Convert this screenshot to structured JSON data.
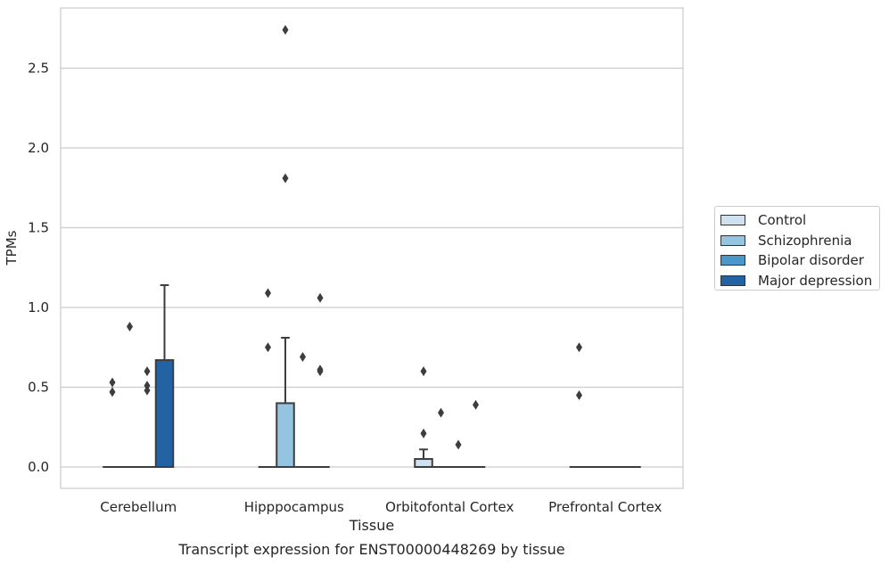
{
  "chart_data": {
    "type": "box",
    "title": "Transcript expression for ENST00000448269 by tissue",
    "xlabel": "Tissue",
    "ylabel": "TPMs",
    "ylim": [
      -0.13,
      2.88
    ],
    "yticks": [
      "0.0",
      "0.5",
      "1.0",
      "1.5",
      "2.0",
      "2.5"
    ],
    "ytick_values": [
      0.0,
      0.5,
      1.0,
      1.5,
      2.0,
      2.5
    ],
    "grid": "horizontal",
    "legend_position": "right",
    "categories": [
      "Cerebellum",
      "Hipppocampus",
      "Orbitofontal Cortex",
      "Prefrontal Cortex"
    ],
    "series": [
      {
        "name": "Control",
        "color": "#d0e1f2",
        "boxes": [
          {
            "q1": 0,
            "median": 0,
            "q3": 0,
            "whisker_low": 0,
            "whisker_high": 0,
            "outliers": [
              0.53,
              0.47
            ]
          },
          {
            "q1": 0,
            "median": 0,
            "q3": 0,
            "whisker_low": 0,
            "whisker_high": 0,
            "outliers": [
              1.09,
              0.75
            ]
          },
          {
            "q1": 0,
            "median": 0,
            "q3": 0.05,
            "whisker_low": 0,
            "whisker_high": 0.11,
            "outliers": [
              0.6,
              0.21
            ]
          },
          {
            "q1": 0,
            "median": 0,
            "q3": 0,
            "whisker_low": 0,
            "whisker_high": 0,
            "outliers": [
              0.75,
              0.45
            ]
          }
        ]
      },
      {
        "name": "Schizophrenia",
        "color": "#94c4df",
        "boxes": [
          {
            "q1": 0,
            "median": 0,
            "q3": 0,
            "whisker_low": 0,
            "whisker_high": 0,
            "outliers": [
              0.88
            ]
          },
          {
            "q1": 0,
            "median": 0,
            "q3": 0.4,
            "whisker_low": 0,
            "whisker_high": 0.81,
            "outliers": [
              2.74,
              1.81
            ]
          },
          {
            "q1": 0,
            "median": 0,
            "q3": 0,
            "whisker_low": 0,
            "whisker_high": 0,
            "outliers": [
              0.34
            ]
          },
          {
            "q1": 0,
            "median": 0,
            "q3": 0,
            "whisker_low": 0,
            "whisker_high": 0,
            "outliers": []
          }
        ]
      },
      {
        "name": "Bipolar disorder",
        "color": "#4a98c9",
        "boxes": [
          {
            "q1": 0,
            "median": 0,
            "q3": 0,
            "whisker_low": 0,
            "whisker_high": 0,
            "outliers": [
              0.6,
              0.51,
              0.48
            ]
          },
          {
            "q1": 0,
            "median": 0,
            "q3": 0,
            "whisker_low": 0,
            "whisker_high": 0,
            "outliers": [
              0.69
            ]
          },
          {
            "q1": 0,
            "median": 0,
            "q3": 0,
            "whisker_low": 0,
            "whisker_high": 0,
            "outliers": [
              0.14
            ]
          },
          {
            "q1": 0,
            "median": 0,
            "q3": 0,
            "whisker_low": 0,
            "whisker_high": 0,
            "outliers": []
          }
        ]
      },
      {
        "name": "Major depression",
        "color": "#2363a3",
        "boxes": [
          {
            "q1": 0,
            "median": 0,
            "q3": 0.67,
            "whisker_low": 0,
            "whisker_high": 1.14,
            "outliers": []
          },
          {
            "q1": 0,
            "median": 0,
            "q3": 0,
            "whisker_low": 0,
            "whisker_high": 0,
            "outliers": [
              1.06,
              0.61,
              0.6
            ]
          },
          {
            "q1": 0,
            "median": 0,
            "q3": 0,
            "whisker_low": 0,
            "whisker_high": 0,
            "outliers": [
              0.39
            ]
          },
          {
            "q1": 0,
            "median": 0,
            "q3": 0,
            "whisker_low": 0,
            "whisker_high": 0,
            "outliers": []
          }
        ]
      }
    ]
  }
}
